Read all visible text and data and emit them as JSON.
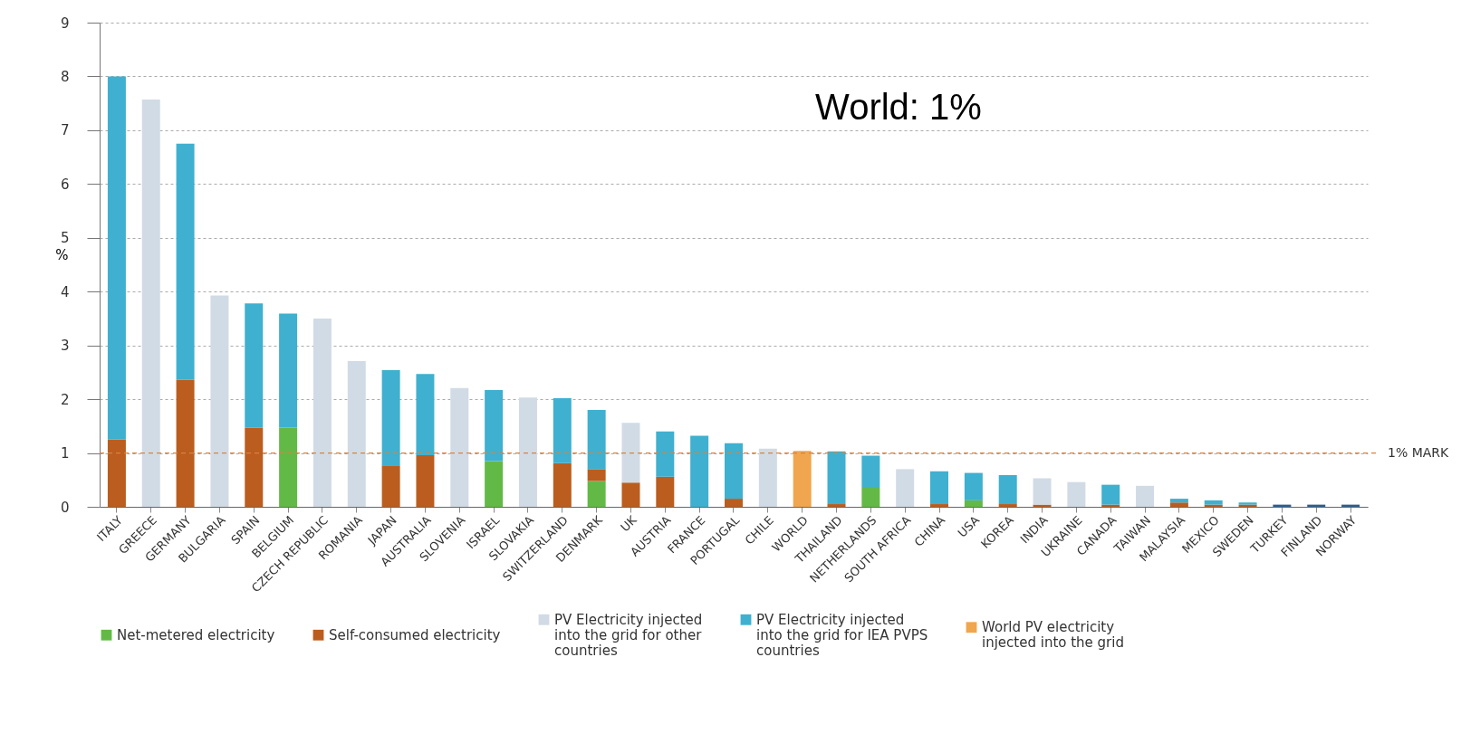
{
  "chart_data": {
    "type": "bar",
    "stacked": true,
    "ylabel": "%",
    "categories": [
      "ITALY",
      "GREECE",
      "GERMANY",
      "BULGARIA",
      "SPAIN",
      "BELGIUM",
      "CZECH REPUBLIC",
      "ROMANIA",
      "JAPAN",
      "AUSTRALIA",
      "SLOVENIA",
      "ISRAEL",
      "SLOVAKIA",
      "SWITZERLAND",
      "DENMARK",
      "UK",
      "AUSTRIA",
      "FRANCE",
      "PORTUGAL",
      "CHILE",
      "WORLD",
      "THAILAND",
      "NETHERLANDS",
      "SOUTH AFRICA",
      "CHINA",
      "USA",
      "KOREA",
      "INDIA",
      "UKRAINE",
      "CANADA",
      "TAIWAN",
      "MALAYSIA",
      "MEXICO",
      "SWEDEN",
      "TURKEY",
      "FINLAND",
      "NORWAY"
    ],
    "series": [
      {
        "name": "Net-metered electricity",
        "color": "#63b946",
        "values": [
          null,
          null,
          null,
          null,
          null,
          1.47,
          null,
          null,
          null,
          null,
          null,
          0.85,
          null,
          null,
          0.48,
          null,
          null,
          null,
          null,
          null,
          null,
          null,
          0.37,
          null,
          null,
          0.12,
          null,
          null,
          null,
          null,
          null,
          null,
          null,
          null,
          null,
          null,
          null
        ]
      },
      {
        "name": "Self-consumed electricity",
        "color": "#bb5d1e",
        "values": [
          1.25,
          null,
          2.36,
          null,
          1.47,
          null,
          null,
          null,
          0.77,
          0.96,
          null,
          null,
          null,
          0.81,
          0.22,
          0.45,
          0.56,
          null,
          0.15,
          null,
          null,
          0.05,
          null,
          null,
          0.05,
          null,
          0.05,
          0.04,
          null,
          0.04,
          null,
          0.08,
          0.04,
          0.04,
          null,
          null,
          null
        ]
      },
      {
        "name": "PV Electricity injected into the grid for other countries",
        "color": "#d1dbe6",
        "values": [
          null,
          7.57,
          null,
          3.93,
          null,
          null,
          3.5,
          2.71,
          null,
          null,
          2.21,
          null,
          2.03,
          null,
          null,
          1.11,
          null,
          null,
          null,
          1.08,
          null,
          null,
          null,
          0.7,
          null,
          null,
          null,
          0.49,
          0.46,
          null,
          0.39,
          null,
          null,
          null,
          null,
          null,
          null
        ]
      },
      {
        "name": "PV Electricity injected into the grid for IEA PVPS countries",
        "color": "#3fb0cf",
        "values": [
          6.75,
          null,
          4.39,
          null,
          2.31,
          2.12,
          null,
          null,
          1.77,
          1.51,
          null,
          1.32,
          null,
          1.21,
          1.1,
          null,
          0.84,
          1.32,
          1.03,
          null,
          null,
          0.98,
          0.58,
          null,
          0.61,
          0.51,
          0.54,
          null,
          null,
          0.37,
          null,
          0.07,
          0.08,
          0.04,
          null,
          null,
          null
        ]
      },
      {
        "name": "World PV electricity injected into the grid",
        "color": "#f0a64e",
        "values": [
          null,
          null,
          null,
          null,
          null,
          null,
          null,
          null,
          null,
          null,
          null,
          null,
          null,
          null,
          null,
          null,
          null,
          null,
          null,
          null,
          1.04,
          null,
          null,
          null,
          null,
          null,
          null,
          null,
          null,
          null,
          null,
          null,
          null,
          null,
          null,
          null,
          null
        ]
      },
      {
        "color": "#2b5f8f",
        "values": [
          null,
          null,
          null,
          null,
          null,
          null,
          null,
          null,
          null,
          null,
          null,
          null,
          null,
          null,
          null,
          null,
          null,
          null,
          null,
          null,
          null,
          null,
          null,
          null,
          null,
          null,
          null,
          null,
          null,
          null,
          null,
          null,
          null,
          null,
          0.04,
          0.04,
          0.04
        ]
      }
    ],
    "ylim": [
      0,
      9
    ],
    "yticks": [
      0,
      1,
      2,
      3,
      4,
      5,
      6,
      7,
      8,
      9
    ],
    "grid": "y",
    "legend": "bottom",
    "ref_lines": [
      {
        "axis": "y",
        "value": 1,
        "label": "1% MARK",
        "color": "#d9823f",
        "line_style": "dashed"
      }
    ],
    "annotations": [
      "World: 1%"
    ]
  }
}
